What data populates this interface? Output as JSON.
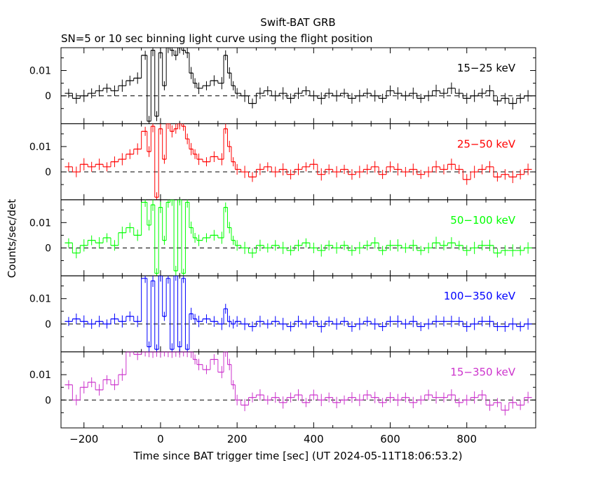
{
  "title": "Swift-BAT GRB",
  "subtitle": "SN=5 or 10 sec binning light curve using the flight position",
  "ylabel": "Counts/sec/det",
  "xlabel": "Time since BAT trigger time [sec] (UT 2024-05-11T18:06:53.2)",
  "chart_data": {
    "type": "line",
    "xlim": [
      -260,
      980
    ],
    "xticks": [
      -200,
      0,
      200,
      400,
      600,
      800
    ],
    "xtick_labels": [
      "−200",
      "0",
      "200",
      "400",
      "600",
      "800"
    ],
    "panels": [
      {
        "band": "15−25 keV",
        "color": "#000000",
        "ylim": [
          -0.011,
          0.019
        ],
        "yticks": [
          0,
          0.01
        ],
        "ytick_labels": [
          "0",
          "0.01"
        ],
        "x": [
          -240,
          -220,
          -200,
          -180,
          -160,
          -140,
          -120,
          -100,
          -80,
          -60,
          -40,
          -30,
          -20,
          -10,
          0,
          10,
          20,
          30,
          40,
          50,
          60,
          70,
          80,
          90,
          100,
          120,
          140,
          160,
          170,
          180,
          190,
          200,
          220,
          240,
          260,
          280,
          300,
          320,
          340,
          360,
          380,
          400,
          420,
          440,
          460,
          480,
          500,
          520,
          540,
          560,
          580,
          600,
          620,
          640,
          660,
          680,
          700,
          720,
          740,
          760,
          780,
          800,
          820,
          840,
          860,
          880,
          900,
          920,
          940,
          960
        ],
        "values": [
          0.001,
          -0.001,
          0.0,
          0.001,
          0.002,
          0.003,
          0.002,
          0.004,
          0.006,
          0.007,
          0.016,
          -0.01,
          0.018,
          -0.008,
          0.017,
          0.004,
          0.019,
          0.018,
          0.016,
          0.019,
          0.018,
          0.017,
          0.009,
          0.005,
          0.003,
          0.004,
          0.006,
          0.005,
          0.016,
          0.009,
          0.004,
          0.001,
          0.0,
          -0.003,
          0.001,
          0.002,
          0.0,
          0.001,
          -0.001,
          0.001,
          0.002,
          0.0,
          -0.001,
          0.001,
          0.0,
          0.001,
          -0.001,
          0.0,
          0.001,
          0.0,
          -0.001,
          0.002,
          0.001,
          0.0,
          0.001,
          -0.001,
          0.0,
          0.002,
          0.001,
          0.003,
          0.001,
          -0.001,
          0.0,
          0.001,
          0.002,
          -0.002,
          -0.001,
          -0.003,
          -0.001,
          0.0
        ]
      },
      {
        "band": "25−50 keV",
        "color": "#ff0000",
        "ylim": [
          -0.011,
          0.019
        ],
        "yticks": [
          0,
          0.01
        ],
        "ytick_labels": [
          "0",
          "0.01"
        ],
        "x": [
          -240,
          -220,
          -200,
          -180,
          -160,
          -140,
          -120,
          -100,
          -80,
          -60,
          -40,
          -30,
          -20,
          -10,
          0,
          10,
          20,
          30,
          40,
          50,
          60,
          70,
          80,
          90,
          100,
          120,
          140,
          160,
          170,
          180,
          190,
          200,
          220,
          240,
          260,
          280,
          300,
          320,
          340,
          360,
          380,
          400,
          420,
          440,
          460,
          480,
          500,
          520,
          540,
          560,
          580,
          600,
          620,
          640,
          660,
          680,
          700,
          720,
          740,
          760,
          780,
          800,
          820,
          840,
          860,
          880,
          900,
          920,
          940,
          960
        ],
        "values": [
          0.002,
          0.0,
          0.003,
          0.002,
          0.003,
          0.002,
          0.004,
          0.005,
          0.007,
          0.009,
          0.016,
          0.008,
          0.018,
          -0.01,
          0.017,
          0.005,
          0.019,
          0.016,
          0.017,
          0.019,
          0.018,
          0.013,
          0.009,
          0.007,
          0.005,
          0.004,
          0.006,
          0.005,
          0.017,
          0.01,
          0.004,
          0.001,
          0.0,
          -0.002,
          0.001,
          0.002,
          0.0,
          0.001,
          -0.001,
          0.001,
          0.002,
          0.003,
          -0.001,
          0.001,
          0.0,
          0.001,
          -0.001,
          0.0,
          0.001,
          0.002,
          -0.001,
          0.002,
          0.001,
          0.0,
          0.001,
          -0.001,
          0.0,
          0.002,
          0.001,
          0.003,
          0.001,
          -0.003,
          0.0,
          0.001,
          0.002,
          -0.002,
          -0.001,
          -0.002,
          -0.001,
          0.001
        ]
      },
      {
        "band": "50−100 keV",
        "color": "#00ff00",
        "ylim": [
          -0.011,
          0.019
        ],
        "yticks": [
          0,
          0.01
        ],
        "ytick_labels": [
          "0",
          "0.01"
        ],
        "x": [
          -240,
          -220,
          -200,
          -180,
          -160,
          -140,
          -120,
          -100,
          -80,
          -60,
          -40,
          -30,
          -20,
          -10,
          0,
          10,
          20,
          30,
          40,
          50,
          60,
          70,
          80,
          90,
          100,
          120,
          140,
          160,
          170,
          180,
          190,
          200,
          220,
          240,
          260,
          280,
          300,
          320,
          340,
          360,
          380,
          400,
          420,
          440,
          460,
          480,
          500,
          520,
          540,
          560,
          580,
          600,
          620,
          640,
          660,
          680,
          700,
          720,
          740,
          760,
          780,
          800,
          820,
          840,
          860,
          880,
          900,
          920,
          940,
          960
        ],
        "values": [
          0.002,
          -0.002,
          0.001,
          0.003,
          0.002,
          0.004,
          0.001,
          0.006,
          0.008,
          0.005,
          0.018,
          0.009,
          0.017,
          -0.01,
          0.016,
          0.003,
          0.018,
          0.019,
          -0.009,
          0.019,
          -0.01,
          0.018,
          0.008,
          0.004,
          0.003,
          0.004,
          0.005,
          0.004,
          0.016,
          0.008,
          0.003,
          0.001,
          0.0,
          -0.002,
          0.001,
          0.0,
          0.001,
          0.0,
          -0.001,
          0.001,
          0.002,
          0.0,
          -0.001,
          0.001,
          0.0,
          0.001,
          -0.001,
          0.0,
          0.001,
          0.002,
          -0.001,
          0.001,
          0.001,
          0.0,
          0.001,
          -0.001,
          0.0,
          0.002,
          0.001,
          0.002,
          0.001,
          -0.001,
          0.0,
          0.001,
          0.001,
          -0.002,
          -0.001,
          -0.001,
          -0.001,
          0.0
        ]
      },
      {
        "band": "100−350 keV",
        "color": "#0000ff",
        "ylim": [
          -0.011,
          0.019
        ],
        "yticks": [
          0,
          0.01
        ],
        "ytick_labels": [
          "0",
          "0.01"
        ],
        "x": [
          -240,
          -220,
          -200,
          -180,
          -160,
          -140,
          -120,
          -100,
          -80,
          -60,
          -40,
          -30,
          -20,
          -10,
          0,
          10,
          20,
          30,
          40,
          50,
          60,
          70,
          80,
          90,
          100,
          120,
          140,
          160,
          170,
          180,
          190,
          200,
          220,
          240,
          260,
          280,
          300,
          320,
          340,
          360,
          380,
          400,
          420,
          440,
          460,
          480,
          500,
          520,
          540,
          560,
          580,
          600,
          620,
          640,
          660,
          680,
          700,
          720,
          740,
          760,
          780,
          800,
          820,
          840,
          860,
          880,
          900,
          920,
          940,
          960
        ],
        "values": [
          0.001,
          0.002,
          0.001,
          0.0,
          0.001,
          0.0,
          0.002,
          0.001,
          0.003,
          0.001,
          0.018,
          -0.009,
          0.017,
          -0.01,
          0.019,
          0.003,
          0.018,
          -0.01,
          0.019,
          -0.009,
          0.018,
          -0.01,
          0.004,
          0.002,
          0.001,
          0.002,
          0.001,
          0.0,
          0.006,
          0.001,
          0.0,
          0.001,
          0.0,
          -0.001,
          0.001,
          0.0,
          0.001,
          0.0,
          -0.001,
          0.001,
          0.0,
          0.001,
          -0.001,
          0.001,
          0.0,
          0.001,
          -0.001,
          0.0,
          0.001,
          0.0,
          -0.001,
          0.001,
          0.001,
          0.0,
          0.001,
          -0.001,
          0.0,
          0.001,
          0.001,
          0.001,
          0.001,
          -0.001,
          0.0,
          0.001,
          0.001,
          -0.001,
          -0.001,
          0.0,
          -0.001,
          0.0
        ]
      },
      {
        "band": "15−350 keV",
        "color": "#cc33cc",
        "ylim": [
          -0.011,
          0.019
        ],
        "yticks": [
          0,
          0.01
        ],
        "ytick_labels": [
          "0",
          "0.01"
        ],
        "x": [
          -240,
          -220,
          -200,
          -180,
          -160,
          -140,
          -120,
          -100,
          -80,
          -60,
          -40,
          -30,
          -20,
          -10,
          0,
          10,
          20,
          30,
          40,
          50,
          60,
          70,
          80,
          90,
          100,
          120,
          140,
          160,
          170,
          180,
          190,
          200,
          220,
          240,
          260,
          280,
          300,
          320,
          340,
          360,
          380,
          400,
          420,
          440,
          460,
          480,
          500,
          520,
          540,
          560,
          580,
          600,
          620,
          640,
          660,
          680,
          700,
          720,
          740,
          760,
          780,
          800,
          820,
          840,
          860,
          880,
          900,
          920,
          940,
          960
        ],
        "values": [
          0.006,
          0.0,
          0.005,
          0.007,
          0.004,
          0.008,
          0.006,
          0.01,
          0.019,
          0.018,
          0.019,
          0.019,
          0.019,
          0.019,
          0.019,
          0.019,
          0.019,
          0.019,
          0.019,
          0.019,
          0.019,
          0.019,
          0.019,
          0.016,
          0.014,
          0.012,
          0.016,
          0.011,
          0.019,
          0.014,
          0.006,
          0.0,
          -0.002,
          0.001,
          0.002,
          0.0,
          0.001,
          -0.001,
          0.001,
          0.002,
          -0.001,
          0.002,
          0.0,
          0.001,
          -0.001,
          0.0,
          0.001,
          0.0,
          0.002,
          0.001,
          -0.001,
          0.001,
          0.0,
          0.001,
          -0.001,
          0.0,
          0.002,
          0.001,
          0.001,
          0.002,
          -0.001,
          0.0,
          0.001,
          0.002,
          -0.002,
          -0.001,
          -0.004,
          -0.001,
          -0.002,
          0.001
        ]
      }
    ]
  }
}
